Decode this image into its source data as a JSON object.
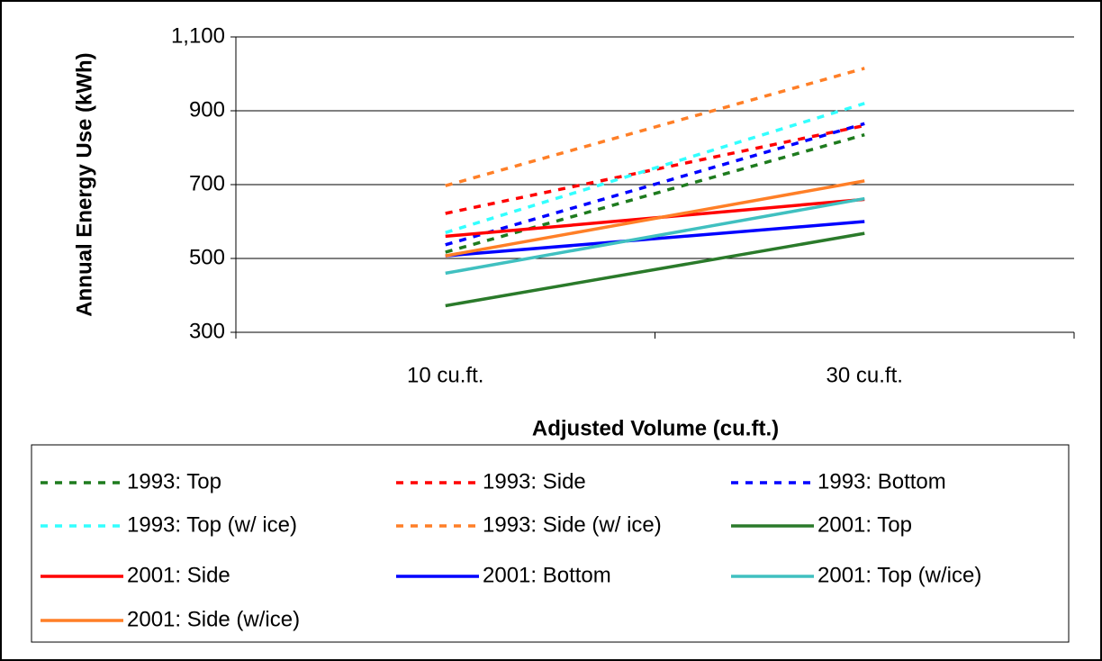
{
  "chart_data": {
    "type": "line",
    "y_label": "Annual Energy Use (kWh)",
    "x_label": "Adjusted Volume (cu.ft.)",
    "categories": [
      "10 cu.ft.",
      "30 cu.ft."
    ],
    "ylim": [
      300,
      1100
    ],
    "yticks": [
      300,
      500,
      700,
      900,
      {
        "value": 1100,
        "label": "1,100"
      }
    ],
    "grid": true,
    "series": [
      {
        "name": "1993: Top",
        "color": "#1e7b1e",
        "style": "dashed",
        "values": [
          517,
          835
        ]
      },
      {
        "name": "1993: Side",
        "color": "#ff0000",
        "style": "dashed",
        "values": [
          622,
          860
        ]
      },
      {
        "name": "1993: Bottom",
        "color": "#0000ff",
        "style": "dashed",
        "values": [
          537,
          865
        ]
      },
      {
        "name": "1993: Top (w/ ice)",
        "color": "#33ffff",
        "style": "dashed",
        "values": [
          570,
          920
        ]
      },
      {
        "name": "1993: Side (w/ ice)",
        "color": "#ff7f27",
        "style": "dashed",
        "values": [
          697,
          1015
        ]
      },
      {
        "name": "2001: Top",
        "color": "#2a7a2a",
        "style": "solid",
        "values": [
          372,
          568
        ]
      },
      {
        "name": "2001: Side",
        "color": "#ff0000",
        "style": "solid",
        "values": [
          560,
          660
        ]
      },
      {
        "name": "2001: Bottom",
        "color": "#0000ff",
        "style": "solid",
        "values": [
          507,
          600
        ]
      },
      {
        "name": "2001: Top (w/ice)",
        "color": "#40c0c0",
        "style": "solid",
        "values": [
          460,
          662
        ]
      },
      {
        "name": "2001: Side (w/ice)",
        "color": "#ff7f27",
        "style": "solid",
        "values": [
          507,
          710
        ]
      }
    ]
  }
}
